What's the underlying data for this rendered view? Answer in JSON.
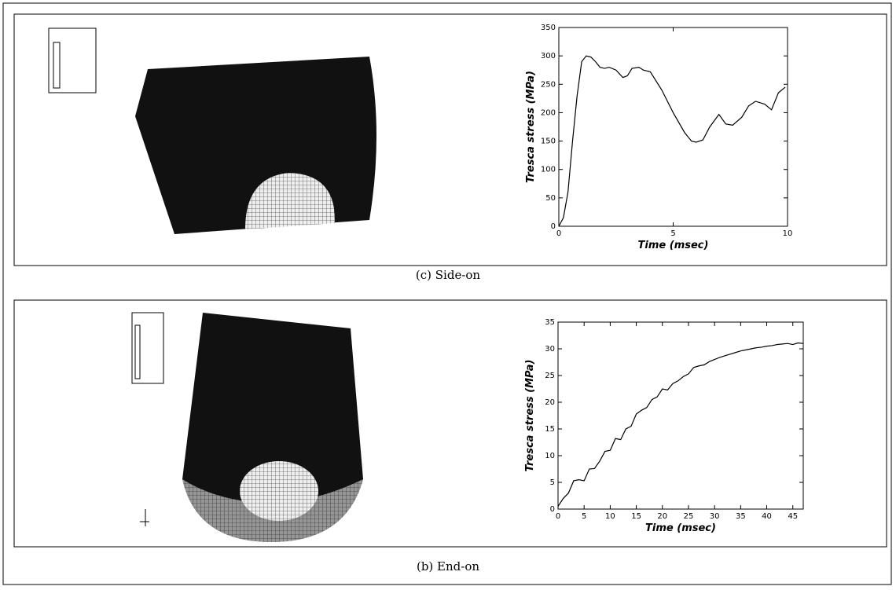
{
  "chart_data": [
    {
      "type": "line",
      "caption": "(c) Side-on",
      "x_label": "Time (msec)",
      "y_label": "Tresca stress (MPa)",
      "color": "#000000",
      "x": [
        0,
        0.2,
        0.4,
        0.6,
        0.8,
        1.0,
        1.2,
        1.4,
        1.6,
        1.8,
        2.0,
        2.2,
        2.5,
        2.8,
        3.0,
        3.2,
        3.5,
        3.7,
        4.0,
        4.5,
        5.0,
        5.5,
        5.8,
        6.0,
        6.3,
        6.6,
        7.0,
        7.3,
        7.6,
        8.0,
        8.3,
        8.6,
        9.0,
        9.3,
        9.6,
        9.9
      ],
      "values": [
        0,
        15,
        60,
        150,
        230,
        290,
        300,
        298,
        290,
        280,
        278,
        280,
        275,
        262,
        265,
        278,
        280,
        275,
        272,
        240,
        200,
        165,
        150,
        148,
        152,
        175,
        197,
        180,
        178,
        192,
        212,
        220,
        215,
        205,
        235,
        245
      ],
      "xlim": [
        0,
        10
      ],
      "ylim": [
        0,
        350
      ],
      "xticks": [
        0,
        5,
        10
      ],
      "yticks": [
        0,
        50,
        100,
        150,
        200,
        250,
        300,
        350
      ]
    },
    {
      "type": "line",
      "caption": "(b) End-on",
      "x_label": "Time (msec)",
      "y_label": "Tresca stress (MPa)",
      "color": "#000000",
      "x": [
        0,
        1,
        2,
        3,
        4,
        5,
        6,
        7,
        8,
        9,
        10,
        11,
        12,
        13,
        14,
        15,
        16,
        17,
        18,
        19,
        20,
        21,
        22,
        23,
        24,
        25,
        26,
        27,
        28,
        29,
        30,
        31,
        32,
        33,
        34,
        35,
        36,
        37,
        38,
        39,
        40,
        41,
        42,
        43,
        44,
        45,
        46,
        47
      ],
      "values": [
        0.5,
        2,
        3,
        5.3,
        5.5,
        5.3,
        7.5,
        7.6,
        9,
        10.8,
        11,
        13.2,
        13,
        15,
        15.5,
        17.8,
        18.5,
        19,
        20.5,
        21,
        22.5,
        22.3,
        23.5,
        24,
        24.8,
        25.3,
        26.5,
        26.8,
        27,
        27.6,
        28,
        28.4,
        28.7,
        29,
        29.3,
        29.6,
        29.8,
        30,
        30.2,
        30.3,
        30.5,
        30.6,
        30.8,
        30.9,
        31,
        30.8,
        31.1,
        31
      ],
      "xlim": [
        0,
        47
      ],
      "ylim": [
        0,
        35
      ],
      "xticks": [
        0,
        5,
        10,
        15,
        20,
        25,
        30,
        35,
        40,
        45
      ],
      "yticks": [
        0,
        5,
        10,
        15,
        20,
        25,
        30,
        35
      ]
    }
  ]
}
